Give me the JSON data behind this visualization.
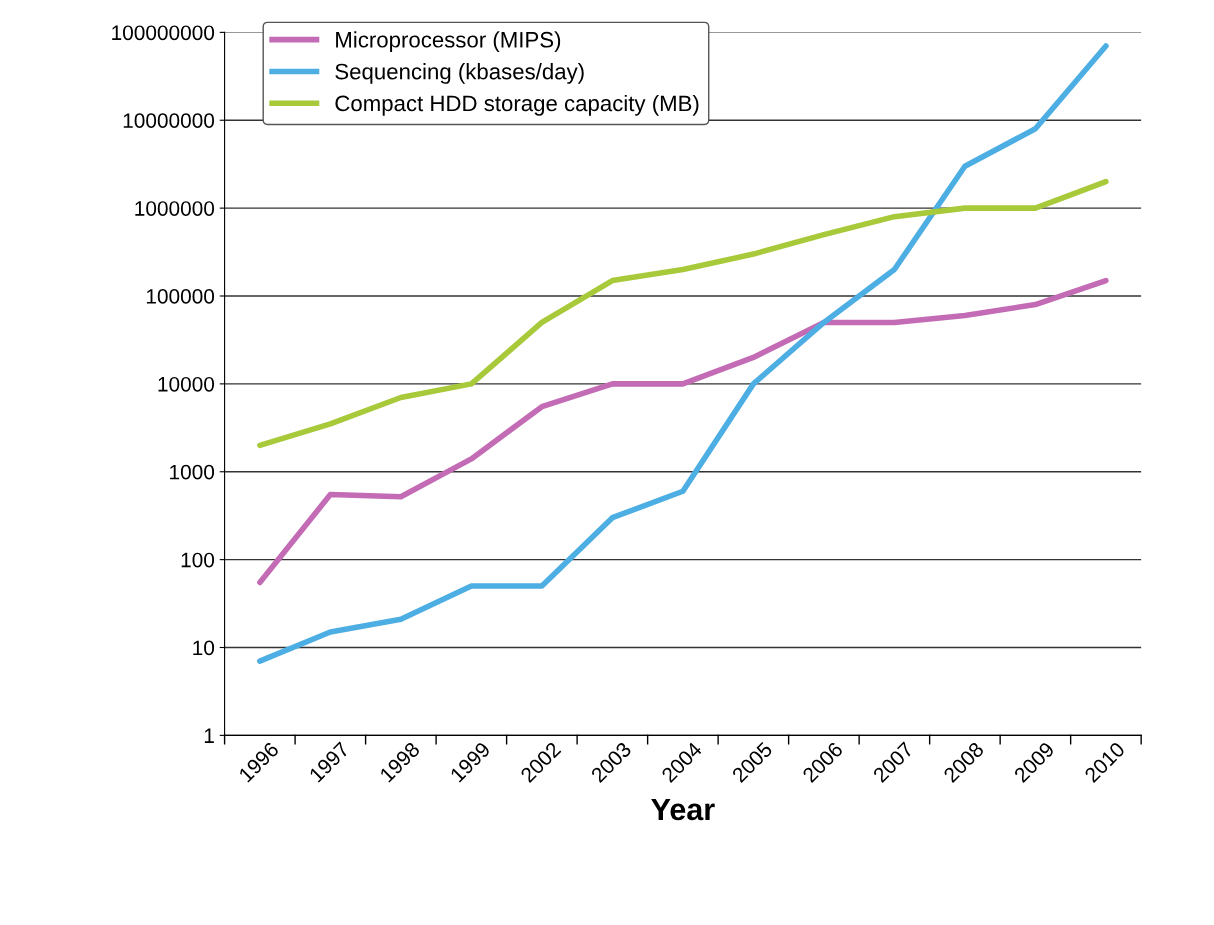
{
  "chart_data": {
    "type": "line",
    "xlabel": "Year",
    "categories": [
      "1996",
      "1997",
      "1998",
      "1999",
      "2002",
      "2003",
      "2004",
      "2005",
      "2006",
      "2007",
      "2008",
      "2009",
      "2010"
    ],
    "series": [
      {
        "name": "Microprocessor (MIPS)",
        "color": "#c36bb5",
        "values": [
          55,
          550,
          520,
          1400,
          5500,
          10000,
          10000,
          20000,
          50000,
          50000,
          60000,
          80000,
          150000
        ]
      },
      {
        "name": "Sequencing (kbases/day)",
        "color": "#4daee3",
        "values": [
          7,
          15,
          21,
          50,
          50,
          300,
          600,
          10000,
          50000,
          200000,
          3000000,
          8000000,
          70000000
        ]
      },
      {
        "name": "Compact HDD storage capacity (MB)",
        "color": "#a8c93a",
        "values": [
          2000,
          3500,
          7000,
          10000,
          50000,
          150000,
          200000,
          300000,
          500000,
          800000,
          1000000,
          1000000,
          2000000
        ]
      }
    ],
    "log": "y",
    "ylim": [
      1,
      100000000
    ],
    "yticks": [
      1,
      10,
      100,
      1000,
      10000,
      100000,
      1000000,
      10000000,
      100000000
    ],
    "grid": "y",
    "legend": "top left",
    "marker": "none",
    "line_style": "solid"
  }
}
